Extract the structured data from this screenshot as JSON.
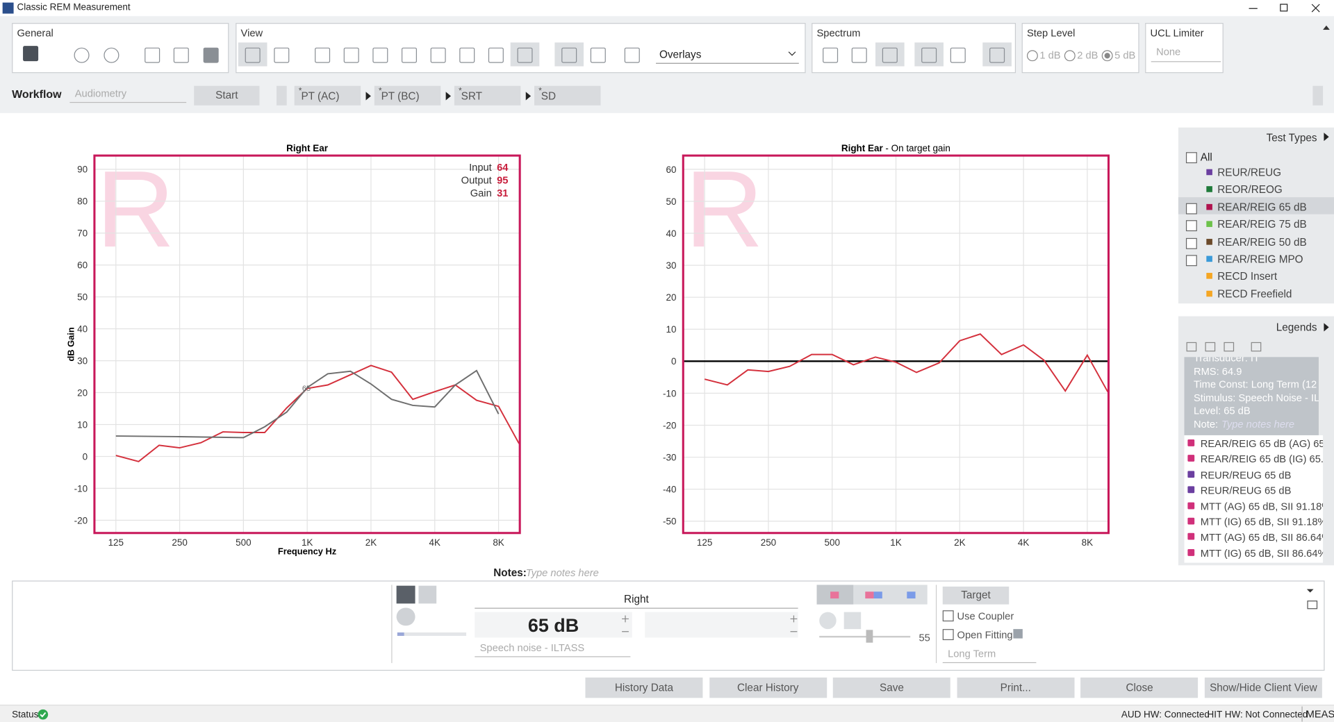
{
  "window": {
    "title": "Classic REM Measurement"
  },
  "toolbar": {
    "general": "General",
    "view": "View",
    "overlays": "Overlays",
    "spectrum": "Spectrum",
    "step_level": {
      "title": "Step Level",
      "options": [
        "1 dB",
        "2 dB",
        "5 dB"
      ],
      "selected": 2
    },
    "ucl_limiter": {
      "title": "UCL Limiter",
      "value": "None"
    }
  },
  "workflow": {
    "label": "Workflow",
    "protocol": "Audiometry",
    "start": "Start",
    "marker": "*",
    "steps": [
      "PT (AC)",
      "PT (BC)",
      "SRT",
      "SD"
    ]
  },
  "chart_data": [
    {
      "type": "line",
      "title": "Right Ear",
      "watermark": "R",
      "xlabel": "Frequency Hz",
      "ylabel": "dB Gain",
      "xscale": "log",
      "xlim": [
        99,
        10080
      ],
      "xticks": [
        125,
        250,
        500,
        {
          "value": 1000,
          "label": "1K"
        },
        {
          "value": 2000,
          "label": "2K"
        },
        {
          "value": 4000,
          "label": "4K"
        },
        {
          "value": 8000,
          "label": "8K"
        }
      ],
      "ylim": [
        -24,
        94.3
      ],
      "yticks": [
        -20,
        -10,
        0,
        10,
        20,
        30,
        40,
        50,
        60,
        70,
        80,
        90
      ],
      "grid": true,
      "readout": [
        {
          "label": "Input",
          "value": 64
        },
        {
          "label": "Output",
          "value": 95
        },
        {
          "label": "Gain",
          "value": 31
        }
      ],
      "series": [
        {
          "color": "#d4303c",
          "x": [
            125,
            160,
            200,
            250,
            315,
            400,
            500,
            630,
            800,
            1000,
            1250,
            1600,
            2000,
            2500,
            3150,
            4000,
            5000,
            6300,
            8000,
            10000
          ],
          "values": [
            0.3,
            -1.6,
            3.5,
            2.7,
            4.3,
            7.7,
            7.5,
            7.5,
            15.2,
            21.3,
            22.4,
            25.6,
            28.5,
            26.4,
            17.9,
            20.3,
            22.4,
            17.6,
            15.7,
            4
          ]
        },
        {
          "color": "#6e6e6e",
          "label": "65",
          "x": [
            125,
            250,
            500,
            630,
            800,
            1000,
            1250,
            1600,
            2000,
            2500,
            3150,
            4000,
            5000,
            6300,
            8000
          ],
          "values": [
            6.4,
            6.2,
            5.9,
            9.3,
            13.9,
            21.6,
            25.9,
            26.7,
            22.7,
            17.9,
            16,
            15.5,
            22.4,
            26.9,
            13.3
          ]
        }
      ]
    },
    {
      "type": "line",
      "title": "Right Ear",
      "subtitle": " - On target gain",
      "watermark": "R",
      "xscale": "log",
      "xlim": [
        99,
        10080
      ],
      "xticks": [
        125,
        250,
        500,
        {
          "value": 1000,
          "label": "1K"
        },
        {
          "value": 2000,
          "label": "2K"
        },
        {
          "value": 4000,
          "label": "4K"
        },
        {
          "value": 8000,
          "label": "8K"
        }
      ],
      "ylim": [
        -53.7,
        64.3
      ],
      "yticks": [
        -50,
        -40,
        -30,
        -20,
        -10,
        0,
        10,
        20,
        30,
        40,
        50,
        60
      ],
      "grid": true,
      "target_line": 0,
      "series": [
        {
          "color": "#d4303c",
          "x": [
            125,
            160,
            200,
            250,
            315,
            400,
            500,
            630,
            800,
            1000,
            1250,
            1600,
            2000,
            2500,
            3150,
            4000,
            5000,
            6300,
            8000,
            10000
          ],
          "values": [
            -5.6,
            -7.4,
            -2.7,
            -3.2,
            -1.6,
            2.1,
            2.1,
            -1.1,
            1.3,
            -0.3,
            -3.5,
            -0.5,
            6.4,
            8.5,
            2.1,
            5.1,
            0.3,
            -9.3,
            1.9,
            -9.6
          ]
        }
      ]
    }
  ],
  "test_types": {
    "title": "Test Types",
    "all": "All",
    "items": [
      {
        "label": "REUR/REUG",
        "color": "#6b3fa0",
        "checkbox": false
      },
      {
        "label": "REOR/REOG",
        "color": "#1f7a3a",
        "checkbox": false
      },
      {
        "label": "REAR/REIG 65 dB",
        "color": "#b0124e",
        "checkbox": true,
        "selected": true
      },
      {
        "label": "REAR/REIG 75 dB",
        "color": "#6cc24a",
        "checkbox": true
      },
      {
        "label": "REAR/REIG 50 dB",
        "color": "#6b4a2a",
        "checkbox": true
      },
      {
        "label": "REAR/REIG MPO",
        "color": "#3a9ad9",
        "checkbox": true
      },
      {
        "label": "RECD Insert",
        "color": "#f5a623",
        "checkbox": false
      },
      {
        "label": "RECD Freefield",
        "color": "#f5a623",
        "checkbox": false
      }
    ]
  },
  "legends": {
    "title": "Legends",
    "details": [
      "Transducer: IT",
      "RMS: 64.9",
      "Time Const: Long Term (12",
      "Stimulus: Speech Noise - IL",
      "Level: 65 dB"
    ],
    "note_label": "Note:",
    "note_placeholder": "Type notes here",
    "items": [
      {
        "label": "REAR/REIG 65 dB (AG) 65...",
        "color": "#d0307a"
      },
      {
        "label": "REAR/REIG 65 dB (IG) 65...",
        "color": "#d0307a"
      },
      {
        "label": "REUR/REUG 65 dB",
        "color": "#6b3fa0"
      },
      {
        "label": "REUR/REUG 65 dB",
        "color": "#6b3fa0"
      },
      {
        "label": "MTT (AG) 65 dB, SII 91.18%",
        "color": "#d0307a"
      },
      {
        "label": "MTT (IG) 65 dB, SII 91.18%",
        "color": "#d0307a"
      },
      {
        "label": "MTT (AG) 65 dB, SII 86.64%",
        "color": "#d0307a"
      },
      {
        "label": "MTT (IG) 65 dB, SII 86.64%",
        "color": "#d0307a"
      }
    ]
  },
  "notes": {
    "label": "Notes:",
    "placeholder": "Type notes here"
  },
  "controls": {
    "side": "Right",
    "level": "65 dB",
    "stimulus": "Speech noise - ILTASS",
    "slider_value": 55,
    "target": "Target",
    "use_coupler": "Use Coupler",
    "open_fitting": "Open Fitting",
    "averaging": "Long Term"
  },
  "buttons": [
    "History Data",
    "Clear History",
    "Save",
    "Print...",
    "Close",
    "Show/Hide Client View"
  ],
  "status": {
    "label": "Status",
    "aud_hw": "AUD HW: Connected",
    "hit_hw": "HIT HW: Not Connected",
    "mode": "MEAS"
  }
}
